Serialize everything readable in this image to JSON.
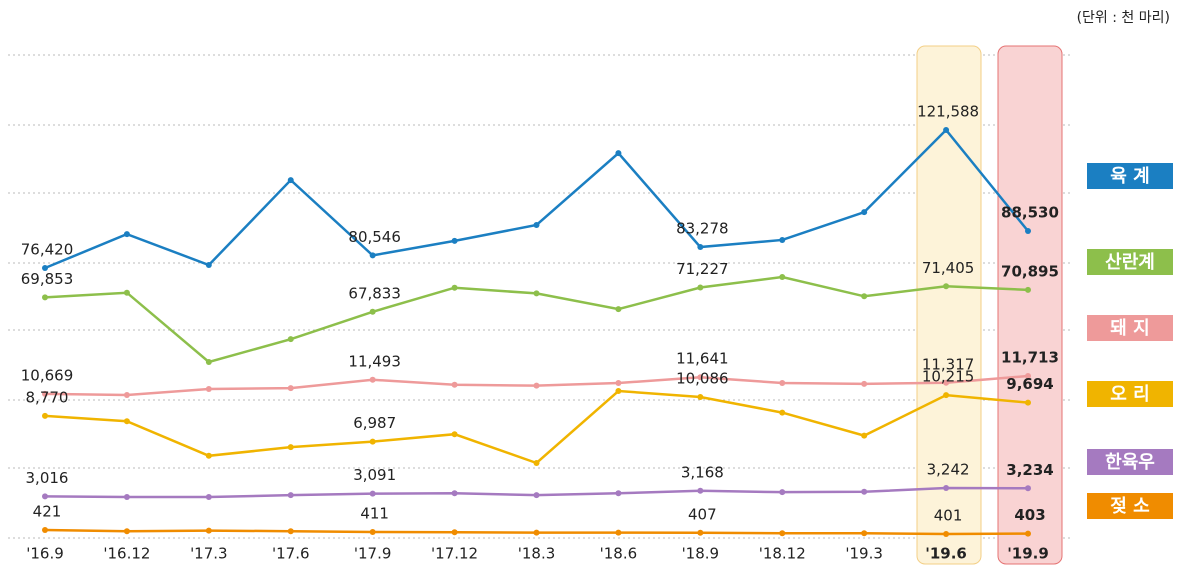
{
  "chart_data": {
    "type": "line",
    "unit_note": "(단위 : 천 마리)",
    "categories": [
      "'16.9",
      "'16.12",
      "'17.3",
      "'17.6",
      "'17.9",
      "'17.12",
      "'18.3",
      "'18.6",
      "'18.9",
      "'18.12",
      "'19.3",
      "'19.6",
      "'19.9"
    ],
    "series": [
      {
        "name": "육 계",
        "color": "#1b7fc2",
        "values": [
          76420,
          87500,
          77400,
          105200,
          80546,
          85300,
          90500,
          114000,
          83278,
          85600,
          94700,
          121588,
          88530
        ],
        "value_labels": [
          "76,420",
          null,
          null,
          null,
          "80,546",
          null,
          null,
          null,
          "83,278",
          null,
          null,
          "121,588",
          "88,530"
        ]
      },
      {
        "name": "산란계",
        "color": "#8dbf4b",
        "values": [
          69853,
          70500,
          60800,
          64000,
          67833,
          71200,
          70400,
          68200,
          71227,
          72700,
          70000,
          71405,
          70895
        ],
        "value_labels": [
          "69,853",
          null,
          null,
          null,
          "67,833",
          null,
          null,
          null,
          "71,227",
          null,
          null,
          "71,405",
          "70,895"
        ]
      },
      {
        "name": "돼 지",
        "color": "#ee9a9a",
        "values": [
          10669,
          10600,
          10950,
          11000,
          11493,
          11200,
          11150,
          11300,
          11641,
          11300,
          11250,
          11317,
          11713
        ],
        "value_labels": [
          "10,669",
          null,
          null,
          null,
          "11,493",
          null,
          null,
          null,
          "11,641",
          null,
          null,
          "11,317",
          "11,713"
        ]
      },
      {
        "name": "오 리",
        "color": "#f0b400",
        "values": [
          8770,
          8400,
          6000,
          6600,
          6987,
          7500,
          5500,
          10500,
          10086,
          9000,
          7400,
          10215,
          9694
        ],
        "value_labels": [
          "8,770",
          null,
          null,
          null,
          "6,987",
          null,
          null,
          null,
          "10,086",
          null,
          null,
          "10,215",
          "9,694"
        ]
      },
      {
        "name": "한육우",
        "color": "#a57ac0",
        "values": [
          3016,
          3000,
          3000,
          3050,
          3091,
          3100,
          3050,
          3100,
          3168,
          3130,
          3140,
          3242,
          3234
        ],
        "value_labels": [
          "3,016",
          null,
          null,
          null,
          "3,091",
          null,
          null,
          null,
          "3,168",
          null,
          null,
          "3,242",
          "3,234"
        ]
      },
      {
        "name": "젖 소",
        "color": "#f08c00",
        "values": [
          421,
          415,
          418,
          415,
          411,
          410,
          408,
          408,
          407,
          405,
          405,
          401,
          403
        ],
        "value_labels": [
          "421",
          null,
          null,
          null,
          "411",
          null,
          null,
          null,
          "407",
          null,
          null,
          "401",
          "403"
        ]
      }
    ]
  }
}
